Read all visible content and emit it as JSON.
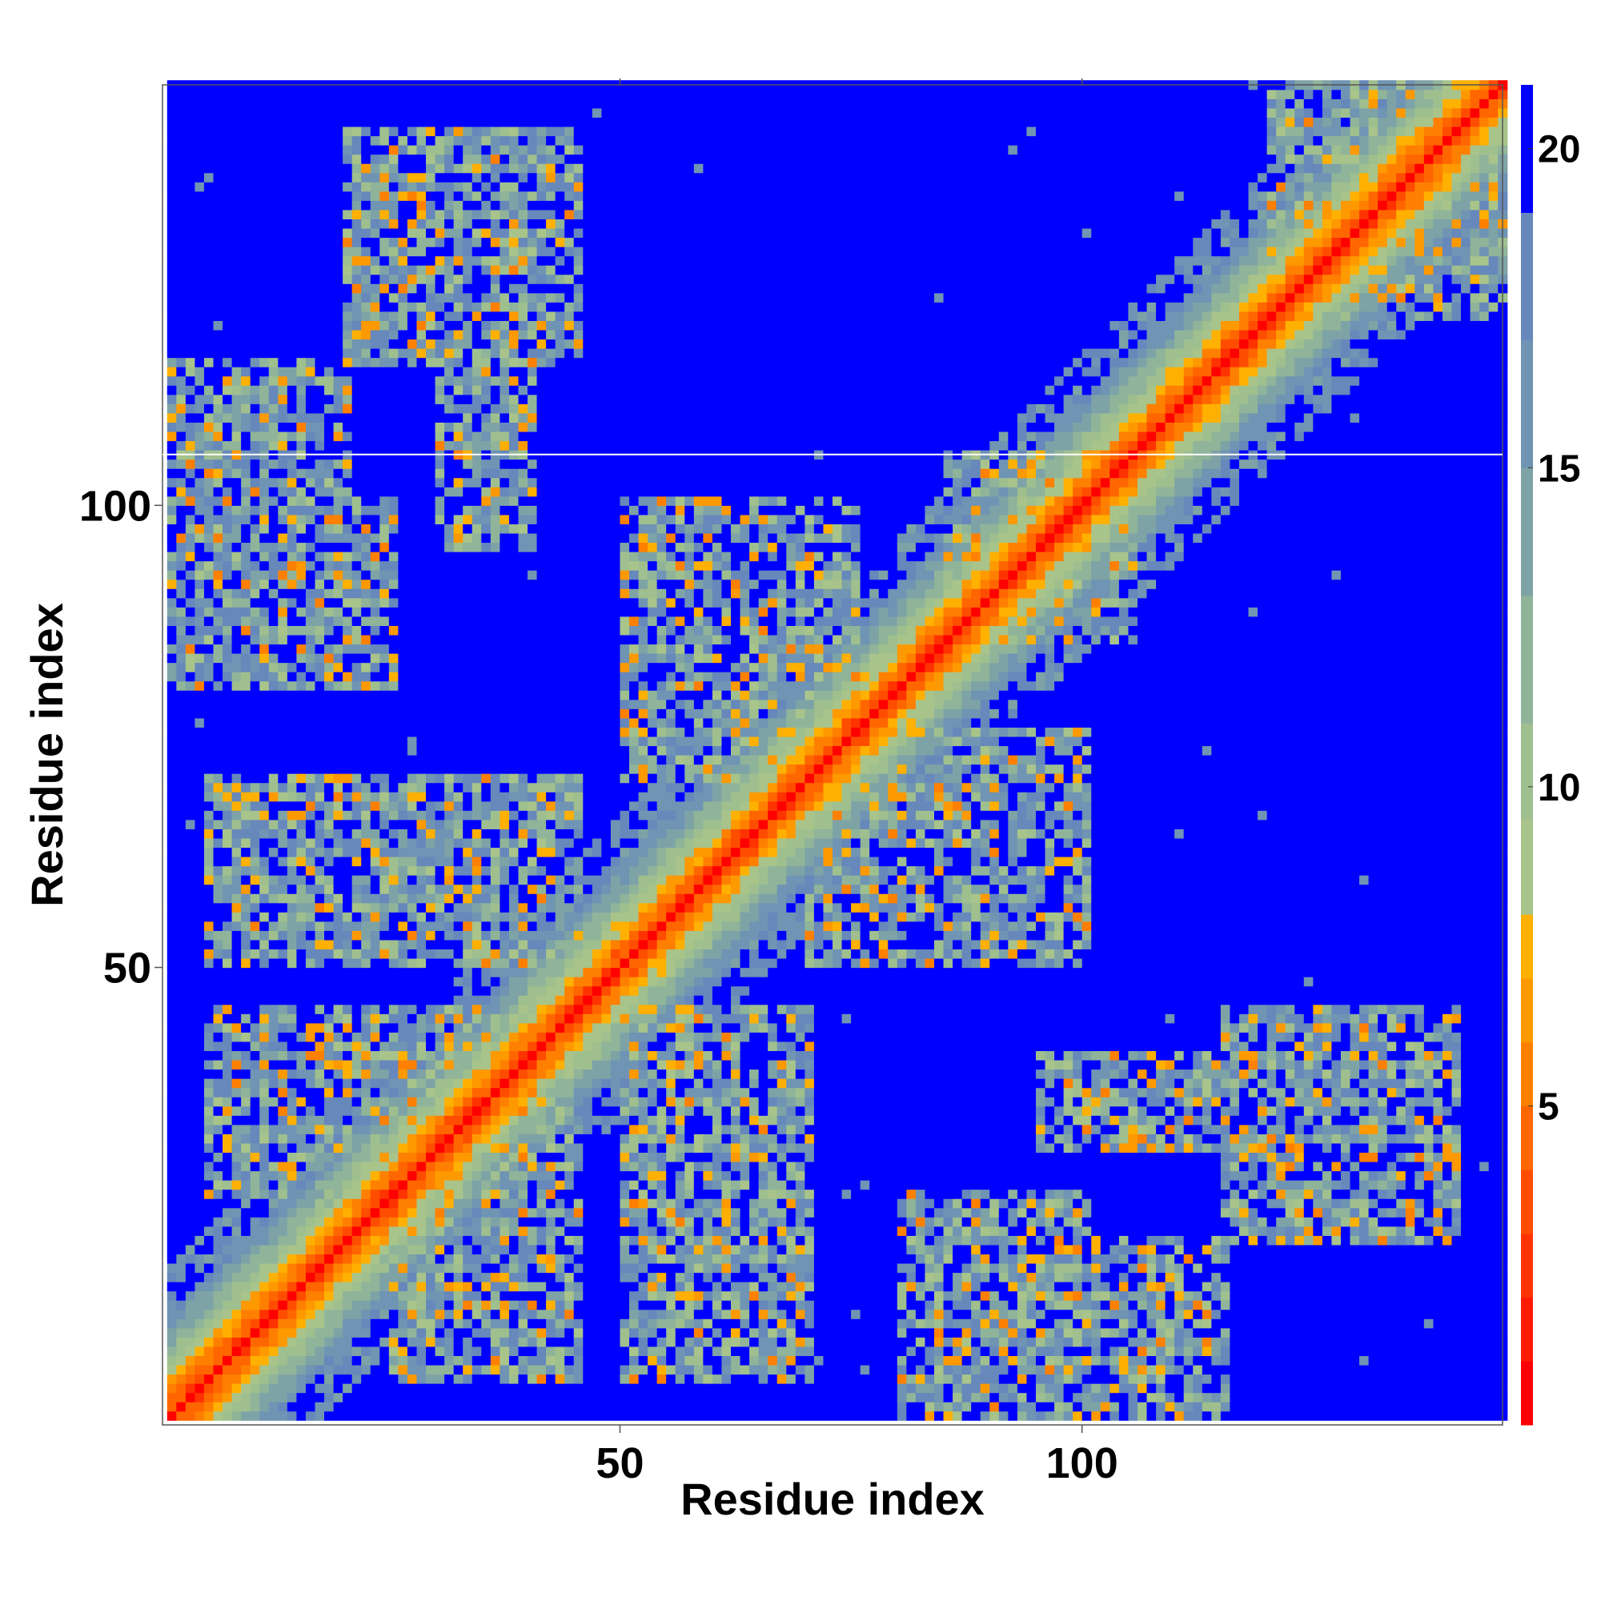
{
  "chart_data": {
    "type": "heatmap",
    "title": "",
    "xlabel": "Residue index",
    "ylabel": "Residue index",
    "n_residues": 145,
    "xlim": [
      0.5,
      145.5
    ],
    "ylim": [
      0.5,
      145.5
    ],
    "x_ticks": [
      50,
      100
    ],
    "x_tick_labels": [
      "50",
      "100"
    ],
    "y_ticks": [
      50,
      100
    ],
    "y_tick_labels": [
      "50",
      "100"
    ],
    "colorbar": {
      "range": [
        0,
        21
      ],
      "ticks": [
        5,
        10,
        15,
        20
      ],
      "tick_labels": [
        "5",
        "10",
        "15",
        "20"
      ],
      "levels": [
        {
          "max": 1,
          "color": "#ff0000"
        },
        {
          "max": 2,
          "color": "#ff1a00"
        },
        {
          "max": 3,
          "color": "#ff3300"
        },
        {
          "max": 4,
          "color": "#ff4d00"
        },
        {
          "max": 5,
          "color": "#ff6600"
        },
        {
          "max": 6,
          "color": "#ff8000"
        },
        {
          "max": 7,
          "color": "#ff9900"
        },
        {
          "max": 8,
          "color": "#ffb000"
        },
        {
          "max": 9.5,
          "color": "#a8c48a"
        },
        {
          "max": 11,
          "color": "#9fbf8f"
        },
        {
          "max": 13,
          "color": "#8fb49a"
        },
        {
          "max": 15,
          "color": "#7ea3a6"
        },
        {
          "max": 17,
          "color": "#6f94b4"
        },
        {
          "max": 19,
          "color": "#6688bb"
        },
        {
          "max": 21,
          "color": "#0000ff"
        }
      ]
    },
    "grid": false,
    "legend": "colorbar-right",
    "structure": {
      "diagonal_band_half_width": 11,
      "contact_domains": [
        {
          "i": [
            1,
            20
          ],
          "j": [
            85,
            115
          ]
        },
        {
          "i": [
            25,
            45
          ],
          "j": [
            5,
            40
          ]
        },
        {
          "i": [
            30,
            40
          ],
          "j": [
            95,
            115
          ]
        },
        {
          "i": [
            50,
            70
          ],
          "j": [
            5,
            45
          ]
        },
        {
          "i": [
            50,
            70
          ],
          "j": [
            70,
            100
          ]
        },
        {
          "i": [
            80,
            100
          ],
          "j": [
            55,
            75
          ]
        },
        {
          "i": [
            80,
            100
          ],
          "j": [
            1,
            25
          ]
        },
        {
          "i": [
            85,
            105
          ],
          "j": [
            85,
            100
          ]
        },
        {
          "i": [
            115,
            140
          ],
          "j": [
            20,
            45
          ]
        },
        {
          "i": [
            120,
            145
          ],
          "j": [
            120,
            145
          ]
        }
      ]
    }
  }
}
